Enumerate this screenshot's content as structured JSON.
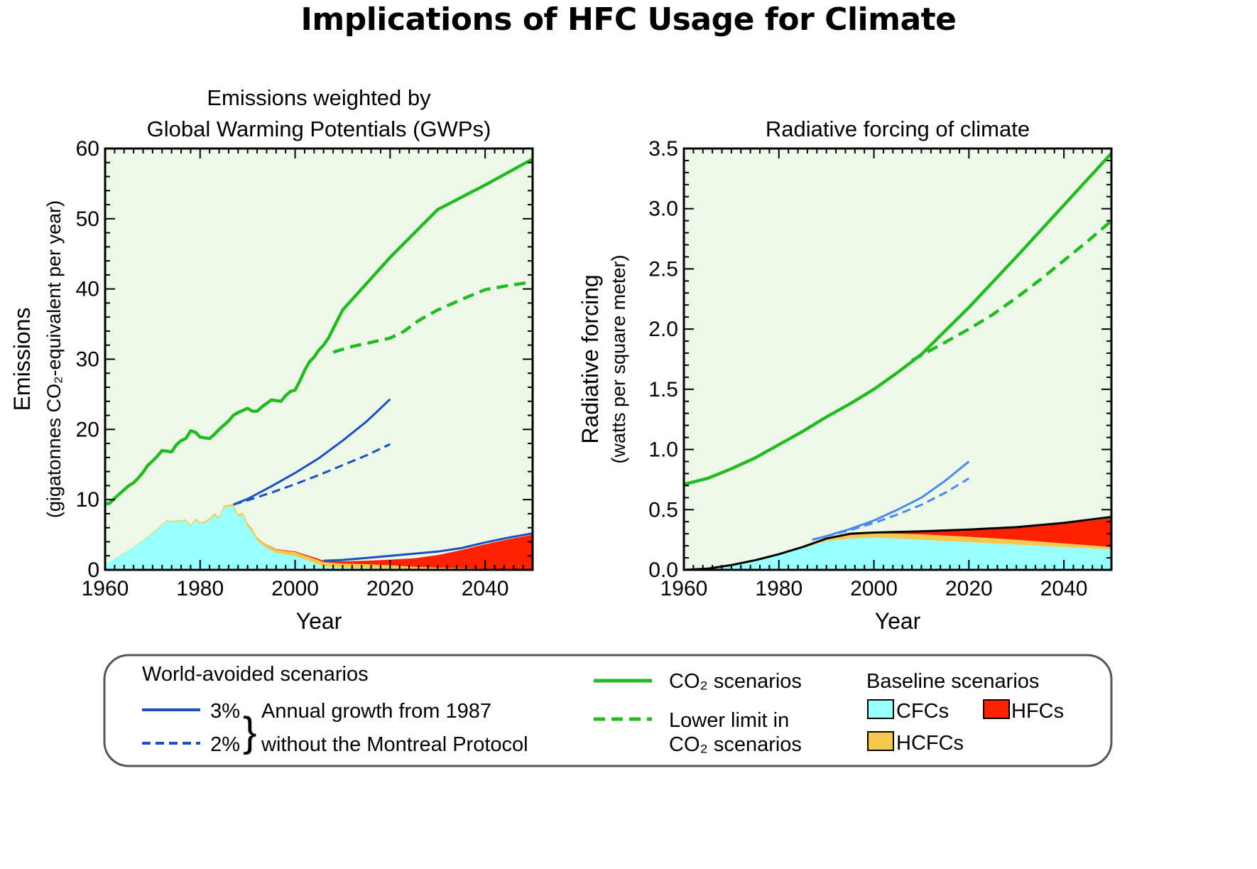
{
  "title": "Implications of HFC Usage for Climate",
  "colors": {
    "background": "#eef8e8",
    "co2": "#22bb22",
    "world_avoided_3pct": "#1a4fc0",
    "world_avoided_2pct": "#1a4fc0",
    "world_avoided_forcing": "#4a8ae8",
    "cfc": "#99ffff",
    "hcfc": "#f2c94c",
    "hfc": "#ff2200",
    "baseline_total": "#000000"
  },
  "chart_data": [
    {
      "type": "area",
      "title": "Emissions weighted by Global Warming Potentials (GWPs)",
      "title_lines": [
        "Emissions weighted by",
        "Global Warming Potentials (GWPs)"
      ],
      "xlabel": "Year",
      "ylabel_lines": [
        "Emissions",
        "(gigatonnes CO₂-equivalent per year)"
      ],
      "xlim": [
        1960,
        2050
      ],
      "ylim": [
        0,
        60
      ],
      "xticks": [
        1960,
        1980,
        2000,
        2020,
        2040
      ],
      "xtick_labels": [
        "1960",
        "1980",
        "2000",
        "2020",
        "2040"
      ],
      "yticks": [
        0,
        10,
        20,
        30,
        40,
        50,
        60
      ],
      "ytick_labels": [
        "0",
        "10",
        "20",
        "30",
        "40",
        "50",
        "60"
      ],
      "grid": false,
      "stacked_areas": [
        {
          "name": "CFCs",
          "color_key": "cfc",
          "x": [
            1960,
            1962,
            1964,
            1966,
            1968,
            1970,
            1972,
            1973,
            1974,
            1976,
            1977,
            1978,
            1979,
            1980,
            1981,
            1982,
            1983,
            1984,
            1985,
            1986,
            1987,
            1988,
            1989,
            1990,
            1991,
            1992,
            1993,
            1994,
            1995,
            1996,
            1998,
            2000,
            2002,
            2004,
            2006,
            2010,
            2020,
            2030,
            2040,
            2050
          ],
          "values": [
            0.8,
            1.6,
            2.4,
            3.2,
            4.2,
            5.2,
            6.4,
            7.0,
            6.8,
            6.9,
            7.0,
            6.2,
            7.1,
            6.6,
            6.7,
            7.1,
            7.8,
            7.3,
            8.9,
            9.0,
            9.1,
            7.6,
            7.8,
            6.2,
            5.4,
            4.2,
            3.6,
            3.1,
            2.8,
            2.4,
            2.2,
            2.0,
            1.5,
            1.0,
            0.5,
            0.3,
            0.2,
            0.1,
            0.05,
            0.0
          ]
        },
        {
          "name": "HCFCs",
          "color_key": "hcfc",
          "x": [
            1960,
            1970,
            1980,
            1985,
            1988,
            1990,
            1992,
            1994,
            1996,
            1998,
            2000,
            2002,
            2004,
            2006,
            2010,
            2015,
            2020,
            2025,
            2030,
            2035,
            2040,
            2045,
            2050
          ],
          "values": [
            0.0,
            0.1,
            0.2,
            0.25,
            0.3,
            0.4,
            0.4,
            0.45,
            0.5,
            0.5,
            0.55,
            0.55,
            0.6,
            0.6,
            0.6,
            0.55,
            0.45,
            0.3,
            0.2,
            0.15,
            0.1,
            0.05,
            0.0
          ]
        },
        {
          "name": "HFCs",
          "color_key": "hfc",
          "x": [
            1960,
            1990,
            1995,
            2000,
            2005,
            2010,
            2015,
            2020,
            2025,
            2030,
            2035,
            2040,
            2045,
            2050
          ],
          "values": [
            0.0,
            0.0,
            0.05,
            0.1,
            0.2,
            0.3,
            0.5,
            0.8,
            1.2,
            1.8,
            2.6,
            3.5,
            4.3,
            5.0
          ]
        }
      ],
      "series": [
        {
          "name": "CO₂ scenarios",
          "style": "solid",
          "color_key": "co2",
          "x": [
            1960,
            1961,
            1962,
            1963,
            1964,
            1965,
            1966,
            1967,
            1968,
            1969,
            1970,
            1971,
            1972,
            1973,
            1974,
            1975,
            1976,
            1977,
            1978,
            1979,
            1980,
            1981,
            1982,
            1983,
            1984,
            1985,
            1986,
            1987,
            1988,
            1989,
            1990,
            1991,
            1992,
            1993,
            1994,
            1995,
            1996,
            1997,
            1998,
            1999,
            2000,
            2001,
            2002,
            2003,
            2004,
            2005,
            2006,
            2007,
            2010,
            2020,
            2030,
            2040,
            2050
          ],
          "values": [
            9.4,
            9.5,
            10.2,
            10.8,
            11.4,
            12.0,
            12.4,
            13.1,
            13.9,
            14.9,
            15.5,
            16.2,
            17.0,
            16.9,
            16.8,
            17.8,
            18.4,
            18.7,
            19.8,
            19.6,
            18.9,
            18.8,
            18.7,
            19.3,
            20.0,
            20.6,
            21.2,
            22.0,
            22.4,
            22.7,
            23.0,
            22.6,
            22.6,
            23.2,
            23.7,
            24.2,
            24.1,
            24.0,
            24.8,
            25.4,
            25.6,
            26.9,
            28.4,
            29.6,
            30.3,
            31.3,
            32.0,
            33.0,
            37.0,
            44.5,
            51.3,
            54.8,
            58.5
          ]
        },
        {
          "name": "Lower limit in CO₂ scenarios",
          "style": "dashed",
          "color_key": "co2",
          "x": [
            2008,
            2012,
            2016,
            2020,
            2023,
            2026,
            2030,
            2035,
            2040,
            2045,
            2050
          ],
          "values": [
            31.0,
            31.8,
            32.4,
            33.0,
            34.0,
            35.5,
            37.0,
            38.5,
            39.9,
            40.5,
            41.0
          ]
        },
        {
          "name": "Annual growth from 1987 without the Montreal Protocol (3%)",
          "style": "solid",
          "color_key": "world_avoided_3pct",
          "x": [
            1987,
            1990,
            1995,
            2000,
            2005,
            2010,
            2015,
            2020
          ],
          "values": [
            9.3,
            10.1,
            11.9,
            13.8,
            15.9,
            18.4,
            21.1,
            24.3
          ]
        },
        {
          "name": "Annual growth from 1987 without the Montreal Protocol (2%)",
          "style": "dashed",
          "color_key": "world_avoided_2pct",
          "x": [
            1987,
            1990,
            1995,
            2000,
            2005,
            2010,
            2015,
            2020
          ],
          "values": [
            9.3,
            9.9,
            11.0,
            12.2,
            13.5,
            14.9,
            16.3,
            17.9
          ]
        },
        {
          "name": "Baseline total",
          "style": "solid",
          "color_key": "world_avoided_3pct",
          "x": [
            2006,
            2010,
            2015,
            2020,
            2025,
            2030,
            2035,
            2040,
            2045,
            2050
          ],
          "values": [
            1.3,
            1.4,
            1.7,
            2.0,
            2.3,
            2.6,
            3.1,
            3.9,
            4.6,
            5.2
          ]
        }
      ]
    },
    {
      "type": "area",
      "title": "Radiative forcing of climate",
      "title_lines": [
        "Radiative forcing of climate"
      ],
      "xlabel": "Year",
      "ylabel_lines": [
        "Radiative forcing",
        "(watts per square meter)"
      ],
      "xlim": [
        1960,
        2050
      ],
      "ylim": [
        0,
        3.5
      ],
      "xticks": [
        1960,
        1980,
        2000,
        2020,
        2040
      ],
      "xtick_labels": [
        "1960",
        "1980",
        "2000",
        "2020",
        "2040"
      ],
      "yticks": [
        0,
        0.5,
        1.0,
        1.5,
        2.0,
        2.5,
        3.0,
        3.5
      ],
      "ytick_labels": [
        "0.0",
        "0.5",
        "1.0",
        "1.5",
        "2.0",
        "2.5",
        "3.0",
        "3.5"
      ],
      "grid": false,
      "stacked_areas": [
        {
          "name": "CFCs",
          "color_key": "cfc",
          "x": [
            1960,
            1965,
            1970,
            1975,
            1980,
            1985,
            1990,
            1995,
            2000,
            2005,
            2010,
            2020,
            2030,
            2040,
            2050
          ],
          "values": [
            0.0,
            0.01,
            0.04,
            0.08,
            0.13,
            0.18,
            0.24,
            0.26,
            0.27,
            0.26,
            0.25,
            0.23,
            0.21,
            0.19,
            0.17
          ]
        },
        {
          "name": "HCFCs",
          "color_key": "hcfc",
          "x": [
            1960,
            1980,
            1985,
            1990,
            1995,
            2000,
            2005,
            2010,
            2020,
            2030,
            2040,
            2050
          ],
          "values": [
            0.0,
            0.005,
            0.01,
            0.02,
            0.03,
            0.035,
            0.04,
            0.045,
            0.045,
            0.04,
            0.03,
            0.02
          ]
        },
        {
          "name": "HFCs",
          "color_key": "hfc",
          "x": [
            1960,
            1990,
            1995,
            2000,
            2005,
            2010,
            2015,
            2020,
            2025,
            2030,
            2035,
            2040,
            2045,
            2050
          ],
          "values": [
            0.0,
            0.0,
            0.005,
            0.01,
            0.02,
            0.025,
            0.04,
            0.06,
            0.085,
            0.11,
            0.14,
            0.17,
            0.2,
            0.24
          ]
        }
      ],
      "series": [
        {
          "name": "CO₂ scenarios",
          "style": "solid",
          "color_key": "co2",
          "x": [
            1960,
            1965,
            1970,
            1975,
            1980,
            1985,
            1990,
            1995,
            2000,
            2005,
            2010,
            2020,
            2030,
            2040,
            2050
          ],
          "values": [
            0.71,
            0.76,
            0.84,
            0.93,
            1.04,
            1.15,
            1.27,
            1.38,
            1.5,
            1.64,
            1.79,
            2.18,
            2.6,
            3.03,
            3.46
          ]
        },
        {
          "name": "Lower limit in CO₂ scenarios",
          "style": "dashed",
          "color_key": "co2",
          "x": [
            2008,
            2015,
            2020,
            2025,
            2030,
            2035,
            2040,
            2045,
            2050
          ],
          "values": [
            1.74,
            1.89,
            2.0,
            2.12,
            2.26,
            2.41,
            2.57,
            2.73,
            2.9
          ]
        },
        {
          "name": "Annual growth from 1987 without the Montreal Protocol (3%)",
          "style": "solid",
          "color_key": "world_avoided_forcing",
          "x": [
            1987,
            1990,
            1995,
            2000,
            2005,
            2010,
            2015,
            2020
          ],
          "values": [
            0.25,
            0.28,
            0.34,
            0.41,
            0.5,
            0.6,
            0.74,
            0.9
          ]
        },
        {
          "name": "Annual growth from 1987 without the Montreal Protocol (2%)",
          "style": "dashed",
          "color_key": "world_avoided_forcing",
          "x": [
            1987,
            1990,
            1995,
            2000,
            2005,
            2010,
            2015,
            2020
          ],
          "values": [
            0.25,
            0.28,
            0.33,
            0.39,
            0.46,
            0.54,
            0.64,
            0.76
          ]
        },
        {
          "name": "Baseline total",
          "style": "solid",
          "color_key": "baseline_total",
          "x": [
            1960,
            1965,
            1970,
            1975,
            1980,
            1985,
            1990,
            1995,
            2000,
            2005,
            2010,
            2020,
            2030,
            2040,
            2050
          ],
          "values": [
            0.0,
            0.01,
            0.04,
            0.08,
            0.13,
            0.19,
            0.26,
            0.3,
            0.31,
            0.315,
            0.32,
            0.335,
            0.355,
            0.39,
            0.44
          ]
        }
      ]
    }
  ],
  "legend": {
    "world_avoided_heading": "World-avoided scenarios",
    "pct3": "3%",
    "pct2": "2%",
    "brace": "}",
    "growth_line1": "Annual growth from 1987",
    "growth_line2": "without the Montreal Protocol",
    "co2_scenarios": "CO₂ scenarios",
    "lower_limit_line1": "Lower limit in",
    "lower_limit_line2": "CO₂ scenarios",
    "baseline_heading": "Baseline scenarios",
    "cfcs": "CFCs",
    "hfcs": "HFCs",
    "hcfcs": "HCFCs"
  }
}
